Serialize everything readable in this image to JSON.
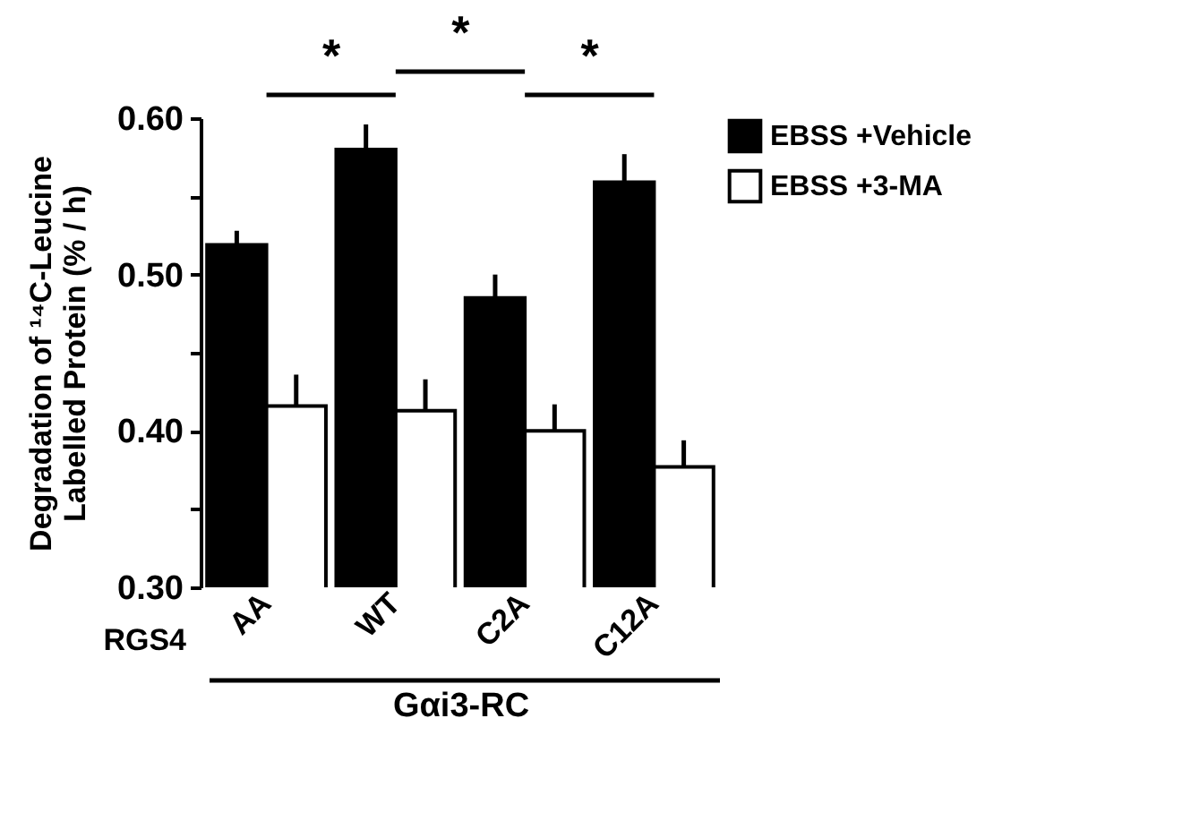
{
  "chart_data": {
    "type": "bar",
    "xlabel": "Gαi3-RC",
    "ylabel": "Degradation of ¹⁴C-Leucine\nLabelled Protein (% / h)",
    "categories": [
      "AA",
      "WT",
      "C2A",
      "C12A"
    ],
    "series": [
      {
        "name": "EBSS +Vehicle",
        "color": "#000000",
        "values": [
          0.519,
          0.58,
          0.485,
          0.559
        ],
        "errors": [
          0.009,
          0.016,
          0.015,
          0.018
        ]
      },
      {
        "name": "EBSS +3-MA",
        "color": "#ffffff",
        "values": [
          0.416,
          0.413,
          0.4,
          0.377
        ],
        "errors": [
          0.02,
          0.02,
          0.017,
          0.017
        ]
      }
    ],
    "ylim": [
      0.3,
      0.6
    ],
    "yticks": [
      {
        "value": 0.3,
        "label": "0.30"
      },
      {
        "value": 0.35,
        "label": null
      },
      {
        "value": 0.4,
        "label": "0.40"
      },
      {
        "value": 0.45,
        "label": null
      },
      {
        "value": 0.5,
        "label": "0.50"
      },
      {
        "value": 0.55,
        "label": null
      },
      {
        "value": 0.6,
        "label": "0.60"
      }
    ],
    "annotations": [
      "*",
      "*",
      "*",
      "RGS4"
    ],
    "legend": "right",
    "grid": false
  }
}
